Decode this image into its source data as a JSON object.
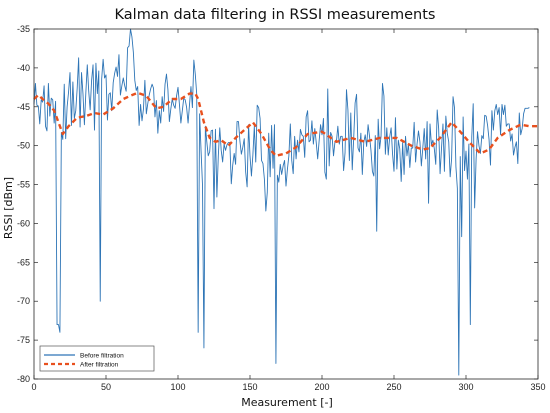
{
  "chart_data": {
    "type": "line",
    "title": "Kalman data filtering in RSSI measurements",
    "xlabel": "Measurement [-]",
    "ylabel": "RSSI [dBm]",
    "xlim": [
      0,
      350
    ],
    "ylim": [
      -80,
      -35
    ],
    "xticks": [
      0,
      50,
      100,
      150,
      200,
      250,
      300,
      350
    ],
    "yticks": [
      -35,
      -40,
      -45,
      -50,
      -55,
      -60,
      -65,
      -70,
      -75,
      -80
    ],
    "grid": false,
    "legend_position": "bottom-left",
    "series": [
      {
        "name": "Before filtration",
        "color": "#2E75B6",
        "style": "solid",
        "x_start": 0,
        "x_step": 1,
        "values": [
          -44.7,
          -42,
          -44.8,
          -44.9,
          -47.2,
          -44.1,
          -44.4,
          -42.3,
          -47.5,
          -48.1,
          -42,
          -46.2,
          -43.9,
          -44.1,
          -47.1,
          -44.3,
          -73,
          -73,
          -74,
          -48.3,
          -49.2,
          -42.1,
          -49.1,
          -45,
          -43.1,
          -40.6,
          -47.4,
          -41.8,
          -46.5,
          -45.5,
          -42.6,
          -38.7,
          -47.6,
          -40.6,
          -43.3,
          -47.3,
          -43.2,
          -39.6,
          -43,
          -45.4,
          -41.6,
          -39.6,
          -48,
          -39.4,
          -43.3,
          -40.4,
          -70,
          -41.4,
          -38.9,
          -41.3,
          -40.9,
          -46.7,
          -43.4,
          -43.2,
          -45.5,
          -41.9,
          -40.7,
          -39.9,
          -41.1,
          -38.3,
          -43.5,
          -42.3,
          -41.3,
          -42.3,
          -43,
          -37.4,
          -37.2,
          -35,
          -36,
          -38,
          -41.6,
          -42.9,
          -42.4,
          -47.4,
          -44.7,
          -46.8,
          -45.3,
          -41.6,
          -45.9,
          -44.6,
          -43.5,
          -42.7,
          -42.1,
          -42.6,
          -46.3,
          -44.2,
          -48.4,
          -45.5,
          -47.1,
          -43.7,
          -45.6,
          -42.1,
          -40.8,
          -42.8,
          -46.9,
          -45.3,
          -44,
          -44.8,
          -45.2,
          -43.6,
          -42.5,
          -44.7,
          -47.1,
          -45.5,
          -43.9,
          -44.1,
          -45.1,
          -47.1,
          -44.7,
          -42.4,
          -45.1,
          -39,
          -40.8,
          -43.4,
          -74,
          -45.9,
          -50.6,
          -55,
          -76,
          -47.5,
          -49.5,
          -51.3,
          -50.8,
          -48.1,
          -48,
          -58.1,
          -47.9,
          -56.6,
          -51.3,
          -47.7,
          -50.6,
          -52.1,
          -49.8,
          -50.6,
          -49.9,
          -49.6,
          -49.6,
          -54.9,
          -52.5,
          -51,
          -52.4,
          -46.9,
          -46.9,
          -49.4,
          -51.1,
          -50.2,
          -49.1,
          -53.4,
          -55.3,
          -47.3,
          -51.3,
          -53.9,
          -51.2,
          -47.5,
          -52.1,
          -44.8,
          -45.1,
          -46.5,
          -51.9,
          -52.3,
          -54.3,
          -58.4,
          -56,
          -48.4,
          -54,
          -47.4,
          -52.9,
          -47.3,
          -78,
          -53.8,
          -54.7,
          -52.4,
          -53.7,
          -52.6,
          -51.9,
          -55.2,
          -53,
          -51.3,
          -47.2,
          -51.9,
          -53.6,
          -48.8,
          -51.7,
          -49.3,
          -50.8,
          -47.9,
          -48.6,
          -48.8,
          -51.5,
          -46.3,
          -45.5,
          -49.5,
          -49.3,
          -46.8,
          -49.8,
          -47.8,
          -49.6,
          -51.7,
          -49.4,
          -47.3,
          -48.6,
          -46.5,
          -53.4,
          -54.3,
          -42.7,
          -52.6,
          -48.3,
          -48.8,
          -51.3,
          -49.5,
          -49.5,
          -47.5,
          -49.8,
          -48.8,
          -48.8,
          -53.2,
          -50.9,
          -42.8,
          -45.4,
          -51.9,
          -45.8,
          -53.1,
          -49.1,
          -44.5,
          -43.4,
          -50.3,
          -50.8,
          -48.4,
          -53.7,
          -49.6,
          -48.6,
          -50.1,
          -47.3,
          -48.8,
          -50.6,
          -53.3,
          -53.9,
          -48.7,
          -61,
          -46.6,
          -50.4,
          -48.8,
          -42,
          -43.6,
          -51.1,
          -47.7,
          -51.2,
          -48.9,
          -47.7,
          -51.1,
          -53.3,
          -46.4,
          -53,
          -49.3,
          -50.4,
          -54.6,
          -49.6,
          -53.7,
          -48.8,
          -51.3,
          -49.8,
          -52.8,
          -50.3,
          -50.3,
          -47,
          -52.1,
          -49.8,
          -48.1,
          -49.5,
          -52.6,
          -50.3,
          -47.8,
          -51.7,
          -46.9,
          -57.4,
          -47.2,
          -49.9,
          -49.3,
          -50.4,
          -52.4,
          -45.4,
          -47.8,
          -53.6,
          -50.3,
          -47.2,
          -53.3,
          -46.2,
          -48.4,
          -49.5,
          -54,
          -51.7,
          -43.7,
          -45.1,
          -52.7,
          -55.5,
          -79.5,
          -51.4,
          -61.7,
          -46.3,
          -53.2,
          -50.7,
          -54.3,
          -49.8,
          -73,
          -48.9,
          -44.6,
          -58,
          -51.8,
          -48.2,
          -50,
          -51,
          -48.7,
          -49.1,
          -46.1,
          -46.2,
          -47.4,
          -49.2,
          -52.5,
          -45.5,
          -48,
          -45.5,
          -44.7,
          -46,
          -45.1,
          -48.6,
          -44.7,
          -46,
          -44.8,
          -47.5,
          -47.2,
          -47.2,
          -49.4,
          -48.5,
          -51.2,
          -50.2,
          -49.5,
          -52.3,
          -45.8,
          -48.6,
          -47.8,
          -45.9,
          -45.2,
          -45.2,
          -45.2,
          -45.1
        ]
      },
      {
        "name": "After filtration",
        "color": "#E8501E",
        "style": "dashed",
        "points": [
          [
            0,
            -44
          ],
          [
            3,
            -43.5
          ],
          [
            6,
            -44
          ],
          [
            10,
            -44.6
          ],
          [
            14,
            -45.5
          ],
          [
            17,
            -47
          ],
          [
            20,
            -48.5
          ],
          [
            24,
            -47.5
          ],
          [
            30,
            -46.4
          ],
          [
            36,
            -46.2
          ],
          [
            42,
            -45.8
          ],
          [
            48,
            -46
          ],
          [
            55,
            -45.2
          ],
          [
            62,
            -44
          ],
          [
            68,
            -43.5
          ],
          [
            72,
            -43.2
          ],
          [
            78,
            -43.6
          ],
          [
            85,
            -45.2
          ],
          [
            90,
            -45
          ],
          [
            96,
            -44
          ],
          [
            102,
            -44
          ],
          [
            108,
            -43.3
          ],
          [
            112,
            -43.3
          ],
          [
            114,
            -44
          ],
          [
            118,
            -47
          ],
          [
            122,
            -49
          ],
          [
            126,
            -49.5
          ],
          [
            130,
            -49.3
          ],
          [
            135,
            -50
          ],
          [
            140,
            -49
          ],
          [
            146,
            -48
          ],
          [
            152,
            -47
          ],
          [
            158,
            -48.5
          ],
          [
            164,
            -50.5
          ],
          [
            168,
            -51.3
          ],
          [
            175,
            -51
          ],
          [
            182,
            -50.2
          ],
          [
            190,
            -48.5
          ],
          [
            200,
            -48.2
          ],
          [
            210,
            -49.5
          ],
          [
            220,
            -49
          ],
          [
            230,
            -49.5
          ],
          [
            240,
            -49
          ],
          [
            252,
            -49
          ],
          [
            262,
            -50
          ],
          [
            270,
            -50.5
          ],
          [
            275,
            -50.3
          ],
          [
            282,
            -49
          ],
          [
            290,
            -47
          ],
          [
            296,
            -48.2
          ],
          [
            302,
            -49.5
          ],
          [
            310,
            -51
          ],
          [
            316,
            -50.5
          ],
          [
            322,
            -49
          ],
          [
            330,
            -48
          ],
          [
            338,
            -47.3
          ],
          [
            344,
            -47.5
          ],
          [
            350,
            -47.5
          ]
        ]
      }
    ]
  }
}
